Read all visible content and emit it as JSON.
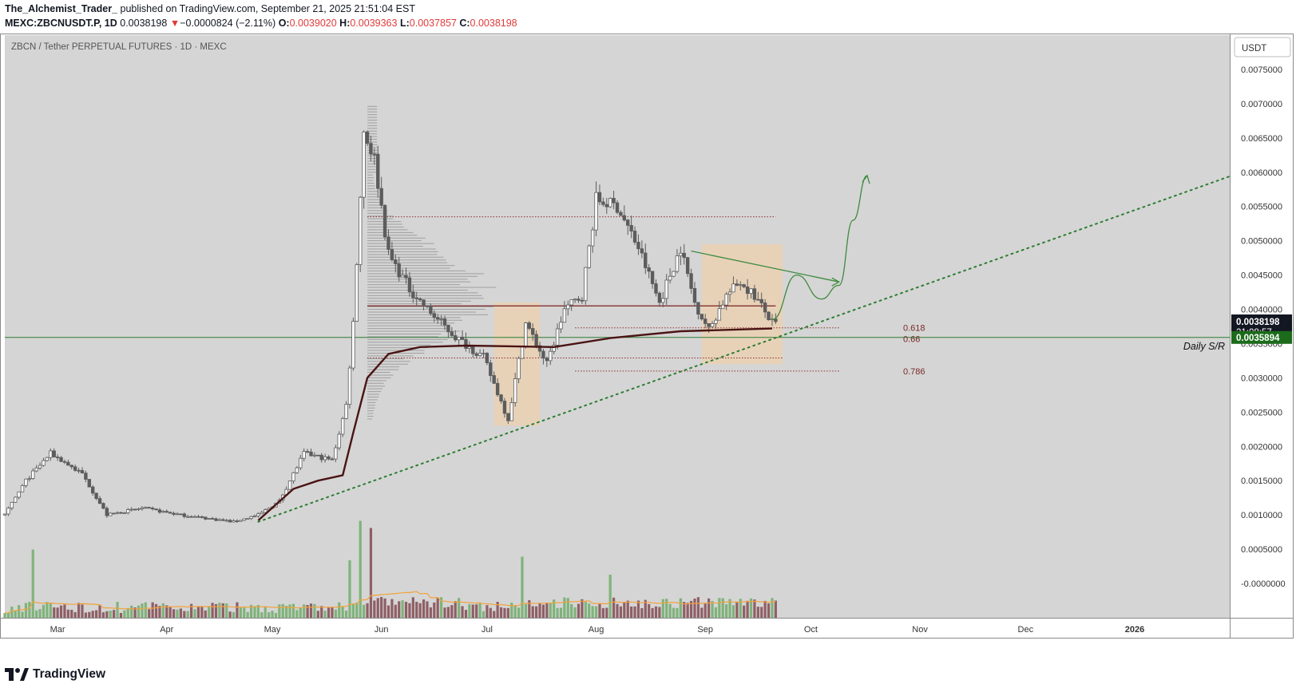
{
  "header": {
    "author": "The_Alchemist_Trader_",
    "published": " published on TradingView.com, September 21, 2025 21:51:04 EST",
    "symbol_line": "MEXC:ZBCNUSDT.P, 1D",
    "last": "0.0038198",
    "change_arrow": "▼",
    "change": "−0.0000824 (−2.11%)",
    "o_label": "O:",
    "o": "0.0039020",
    "h_label": "H:",
    "h": "0.0039363",
    "l_label": "L:",
    "l": "0.0037857",
    "c_label": "C:",
    "c": "0.0038198"
  },
  "chart_title": "ZBCN / Tether PERPETUAL FUTURES · 1D · MEXC",
  "currency_button": "USDT",
  "brand": "TradingView",
  "colors": {
    "plot_bg": "#d5d5d5",
    "candle": "#5c5c5c",
    "volume_up": "#7fb37a",
    "volume_down": "#8f5f66",
    "vwap": "#4a1414",
    "trendline": "#2e7d32",
    "box": "#f5d0a0",
    "projection": "#3f8a3f",
    "volume_ma": "#f3a23c",
    "price_tag": "#131722",
    "sr_tag": "#1b6b1b"
  },
  "chart_data": {
    "type": "candlestick",
    "y_unit": "USDT",
    "ylim": [
      -0.0005,
      0.008
    ],
    "y_ticks": [
      "0.0075000",
      "0.0070000",
      "0.0065000",
      "0.0060000",
      "0.0055000",
      "0.0050000",
      "0.0045000",
      "0.0040000",
      "0.0035000",
      "0.0030000",
      "0.0025000",
      "0.0020000",
      "0.0015000",
      "0.0010000",
      "0.0005000",
      "-0.0000000"
    ],
    "x_labels": [
      "Mar",
      "Apr",
      "May",
      "Jun",
      "Jul",
      "Aug",
      "Sep",
      "Oct",
      "Nov",
      "Dec",
      "2026"
    ],
    "x_range": [
      "2025-02-14",
      "2026-01-28"
    ],
    "price_path": [
      {
        "date": "2025-02-14",
        "price": 0.001
      },
      {
        "date": "2025-02-20",
        "price": 0.0015
      },
      {
        "date": "2025-02-27",
        "price": 0.0019
      },
      {
        "date": "2025-03-08",
        "price": 0.0016
      },
      {
        "date": "2025-03-15",
        "price": 0.001
      },
      {
        "date": "2025-03-25",
        "price": 0.0011
      },
      {
        "date": "2025-04-05",
        "price": 0.001
      },
      {
        "date": "2025-04-20",
        "price": 0.0009
      },
      {
        "date": "2025-04-27",
        "price": 0.001
      },
      {
        "date": "2025-05-03",
        "price": 0.0012
      },
      {
        "date": "2025-05-10",
        "price": 0.0019
      },
      {
        "date": "2025-05-18",
        "price": 0.0018
      },
      {
        "date": "2025-05-22",
        "price": 0.0026
      },
      {
        "date": "2025-05-24",
        "price": 0.0038
      },
      {
        "date": "2025-05-27",
        "price": 0.0066
      },
      {
        "date": "2025-05-30",
        "price": 0.0062
      },
      {
        "date": "2025-06-03",
        "price": 0.0048
      },
      {
        "date": "2025-06-09",
        "price": 0.0043
      },
      {
        "date": "2025-06-14",
        "price": 0.004
      },
      {
        "date": "2025-06-22",
        "price": 0.0036
      },
      {
        "date": "2025-06-30",
        "price": 0.0033
      },
      {
        "date": "2025-07-07",
        "price": 0.0024
      },
      {
        "date": "2025-07-12",
        "price": 0.0038
      },
      {
        "date": "2025-07-18",
        "price": 0.0032
      },
      {
        "date": "2025-07-23",
        "price": 0.004
      },
      {
        "date": "2025-07-28",
        "price": 0.0042
      },
      {
        "date": "2025-08-01",
        "price": 0.0056
      },
      {
        "date": "2025-08-07",
        "price": 0.0055
      },
      {
        "date": "2025-08-13",
        "price": 0.0049
      },
      {
        "date": "2025-08-19",
        "price": 0.0041
      },
      {
        "date": "2025-08-25",
        "price": 0.0049
      },
      {
        "date": "2025-08-29",
        "price": 0.0041
      },
      {
        "date": "2025-09-02",
        "price": 0.0037
      },
      {
        "date": "2025-09-07",
        "price": 0.0042
      },
      {
        "date": "2025-09-11",
        "price": 0.0044
      },
      {
        "date": "2025-09-15",
        "price": 0.0042
      },
      {
        "date": "2025-09-20",
        "price": 0.0038
      }
    ],
    "vwap": [
      {
        "date": "2025-04-27",
        "price": 0.00092
      },
      {
        "date": "2025-05-07",
        "price": 0.00138
      },
      {
        "date": "2025-05-14",
        "price": 0.0015
      },
      {
        "date": "2025-05-21",
        "price": 0.00158
      },
      {
        "date": "2025-05-24",
        "price": 0.0022
      },
      {
        "date": "2025-05-28",
        "price": 0.003
      },
      {
        "date": "2025-06-03",
        "price": 0.00335
      },
      {
        "date": "2025-06-12",
        "price": 0.00345
      },
      {
        "date": "2025-06-25",
        "price": 0.00347
      },
      {
        "date": "2025-07-20",
        "price": 0.00345
      },
      {
        "date": "2025-08-05",
        "price": 0.00358
      },
      {
        "date": "2025-08-25",
        "price": 0.00368
      },
      {
        "date": "2025-09-20",
        "price": 0.00372
      }
    ],
    "horizontal_levels": [
      {
        "price": 0.00535,
        "from": "2025-05-28",
        "to": "2025-09-21",
        "style": "dotted",
        "color": "#8f2e2e"
      },
      {
        "price": 0.00405,
        "from": "2025-05-28",
        "to": "2025-09-21",
        "style": "solid",
        "color": "#7a1f1f"
      },
      {
        "price": 0.00373,
        "from": "2025-07-26",
        "to": "2025-10-09",
        "style": "dotted",
        "color": "#8f2e2e"
      },
      {
        "price": 0.00329,
        "from": "2025-05-28",
        "to": "2025-09-23",
        "style": "dotted",
        "color": "#8f2e2e"
      },
      {
        "price": 0.0031,
        "from": "2025-07-26",
        "to": "2025-10-09",
        "style": "dotted",
        "color": "#8f2e2e"
      }
    ],
    "fib_labels": [
      {
        "label": "0.618",
        "price": 0.00373
      },
      {
        "label": "0.66",
        "price": 0.00357
      },
      {
        "label": "0.786",
        "price": 0.0031
      }
    ],
    "support_line": {
      "price": 0.0035894,
      "label": "Daily S/R"
    },
    "trendline": [
      {
        "date": "2025-04-27",
        "price": 0.0009
      },
      {
        "date": "2026-01-28",
        "price": 0.00594
      }
    ],
    "boxes": [
      {
        "from": "2025-07-03",
        "to": "2025-07-16",
        "top": 0.0041,
        "bottom": 0.0023
      },
      {
        "from": "2025-08-31",
        "to": "2025-09-23",
        "top": 0.00495,
        "bottom": 0.0032
      }
    ],
    "wedge_line": [
      {
        "date": "2025-08-28",
        "price": 0.00485
      },
      {
        "date": "2025-10-09",
        "price": 0.0044
      }
    ],
    "projection_path": [
      {
        "date": "2025-09-20",
        "price": 0.00385
      },
      {
        "date": "2025-09-27",
        "price": 0.0045
      },
      {
        "date": "2025-10-04",
        "price": 0.00415
      },
      {
        "date": "2025-10-09",
        "price": 0.00435
      },
      {
        "date": "2025-10-13",
        "price": 0.0053
      },
      {
        "date": "2025-10-17",
        "price": 0.00595
      }
    ],
    "last_price": {
      "value": "0.0038198",
      "countdown": "21:08:57"
    },
    "sr_price_tag": "0.0035894",
    "volume_peaks": [
      {
        "date": "2025-02-22",
        "rel": 0.95
      },
      {
        "date": "2025-05-23",
        "rel": 0.8
      },
      {
        "date": "2025-05-26",
        "rel": 1.35
      },
      {
        "date": "2025-05-29",
        "rel": 1.25
      },
      {
        "date": "2025-07-11",
        "rel": 0.85
      },
      {
        "date": "2025-08-05",
        "rel": 0.6
      }
    ]
  }
}
